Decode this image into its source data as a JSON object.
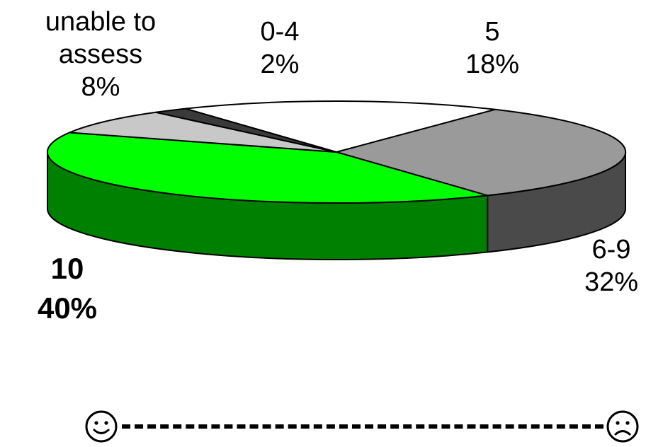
{
  "chart_data": {
    "type": "pie",
    "style": "3d",
    "slices": [
      {
        "label": "5",
        "value": 18,
        "pct_label": "18%",
        "color": "#ffffff",
        "side": "#e0e0e0"
      },
      {
        "label": "6-9",
        "value": 32,
        "pct_label": "32%",
        "color": "#9a9a9a",
        "side": "#4a4a4a"
      },
      {
        "label": "10",
        "value": 40,
        "pct_label": "40%",
        "color": "#00ff00",
        "side": "#008000"
      },
      {
        "label": "unable to assess",
        "value": 8,
        "pct_label": "8%",
        "color": "#c8c8c8",
        "side": "#8a8a8a"
      },
      {
        "label": "0-4",
        "value": 2,
        "pct_label": "2%",
        "color": "#3a3a3a",
        "side": "#1a1a1a"
      }
    ]
  },
  "labels": {
    "unable": {
      "line1": "unable to",
      "line2": "assess",
      "line3": "8%"
    },
    "zero_four": {
      "line1": "0-4",
      "line2": "2%"
    },
    "five": {
      "line1": "5",
      "line2": "18%"
    },
    "six_nine": {
      "line1": "6-9",
      "line2": "32%"
    },
    "ten": {
      "line1": "10",
      "line2": "40%"
    }
  },
  "scale": {
    "left_icon": "smiley-face-icon",
    "right_icon": "frowning-face-icon"
  }
}
